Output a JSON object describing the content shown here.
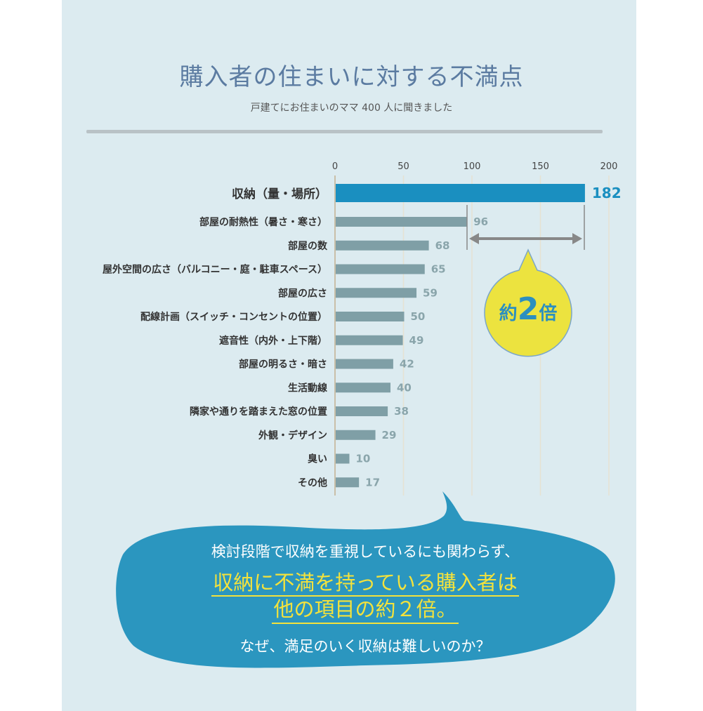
{
  "header": {
    "title": "購入者の住まいに対する不満点",
    "subtitle": "戸建てにお住まいのママ 400 人に聞きました"
  },
  "chart_data": {
    "type": "bar",
    "orientation": "horizontal",
    "title": "購入者の住まいに対する不満点",
    "categories": [
      "収納（量・場所）",
      "部屋の耐熱性（暑さ・寒さ）",
      "部屋の数",
      "屋外空間の広さ（バルコニー・庭・駐車スペース）",
      "部屋の広さ",
      "配線計画（スイッチ・コンセントの位置）",
      "遮音性（内外・上下階）",
      "部屋の明るさ・暗さ",
      "生活動線",
      "隣家や通りを踏まえた窓の位置",
      "外観・デザイン",
      "臭い",
      "その他"
    ],
    "values": [
      182,
      96,
      68,
      65,
      59,
      50,
      49,
      42,
      40,
      38,
      29,
      10,
      17
    ],
    "xlim": [
      0,
      200
    ],
    "ticks": [
      "0",
      "50",
      "100",
      "150",
      "200"
    ],
    "grid": true,
    "highlight_color": "#1a8fc0",
    "bar_color": "#7f9fa6",
    "annotation": {
      "prefix": "約",
      "number": "2",
      "suffix": "倍"
    }
  },
  "callout": {
    "line1": "検討段階で収納を重視しているにも関わらず、",
    "line2": "収納に不満を持っている購入者は",
    "line3": "他の項目の約２倍。",
    "line4": "なぜ、満足のいく収納は難しいのか？"
  }
}
